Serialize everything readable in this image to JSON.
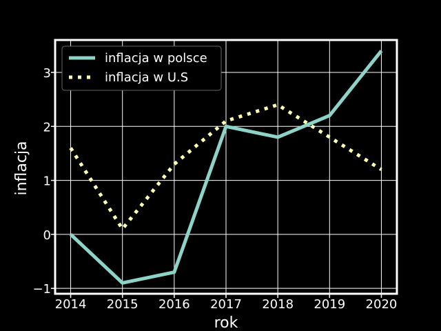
{
  "chart_data": {
    "type": "line",
    "x": [
      2014,
      2015,
      2016,
      2017,
      2018,
      2019,
      2020
    ],
    "series": [
      {
        "name": "inflacja w polsce",
        "values": [
          0.0,
          -0.9,
          -0.7,
          2.0,
          1.8,
          2.2,
          3.4
        ],
        "color": "#8dd3c7",
        "style": "solid"
      },
      {
        "name": "inflacja w U.S",
        "values": [
          1.6,
          0.1,
          1.3,
          2.1,
          2.4,
          1.8,
          1.2
        ],
        "color": "#feffb3",
        "style": "dotted"
      }
    ],
    "xlabel": "rok",
    "ylabel": "inflacja",
    "xlim": [
      2013.7,
      2020.3
    ],
    "ylim": [
      -1.1,
      3.6
    ],
    "xticks": [
      "2014",
      "2015",
      "2016",
      "2017",
      "2018",
      "2019",
      "2020"
    ],
    "yticks": [
      "−1",
      "0",
      "1",
      "2",
      "3"
    ],
    "grid": true,
    "legend": "top-left",
    "background": "#000000",
    "foreground": "#ffffff"
  }
}
